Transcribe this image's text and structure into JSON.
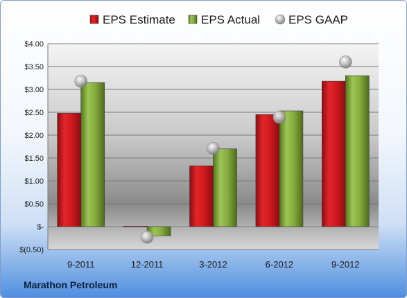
{
  "chart_data": {
    "type": "bar",
    "categories": [
      "9-2011",
      "12-2011",
      "3-2012",
      "6-2012",
      "9-2012"
    ],
    "series": [
      {
        "name": "EPS Estimate",
        "kind": "bar",
        "color": "#c0161b",
        "values": [
          2.48,
          0.01,
          1.33,
          2.45,
          3.18
        ]
      },
      {
        "name": "EPS Actual",
        "kind": "bar",
        "color": "#7fa53a",
        "values": [
          3.15,
          -0.2,
          1.7,
          2.53,
          3.3
        ]
      },
      {
        "name": "EPS GAAP",
        "kind": "marker",
        "color": "#b5b5b5",
        "values": [
          3.18,
          -0.23,
          1.71,
          2.39,
          3.6
        ]
      }
    ],
    "ylim": [
      -0.5,
      4.0
    ],
    "y_ticks": [
      {
        "value": 4.0,
        "label": "$4.00"
      },
      {
        "value": 3.5,
        "label": "$3.50"
      },
      {
        "value": 3.0,
        "label": "$3.00"
      },
      {
        "value": 2.5,
        "label": "$2.50"
      },
      {
        "value": 2.0,
        "label": "$2.00"
      },
      {
        "value": 1.5,
        "label": "$1.50"
      },
      {
        "value": 1.0,
        "label": "$1.00"
      },
      {
        "value": 0.5,
        "label": "$0.50"
      },
      {
        "value": 0.0,
        "label": "$-"
      },
      {
        "value": -0.5,
        "label": "$(0.50)"
      }
    ],
    "grid": true,
    "legend_position": "top"
  },
  "footer_text": "Marathon Petroleum"
}
